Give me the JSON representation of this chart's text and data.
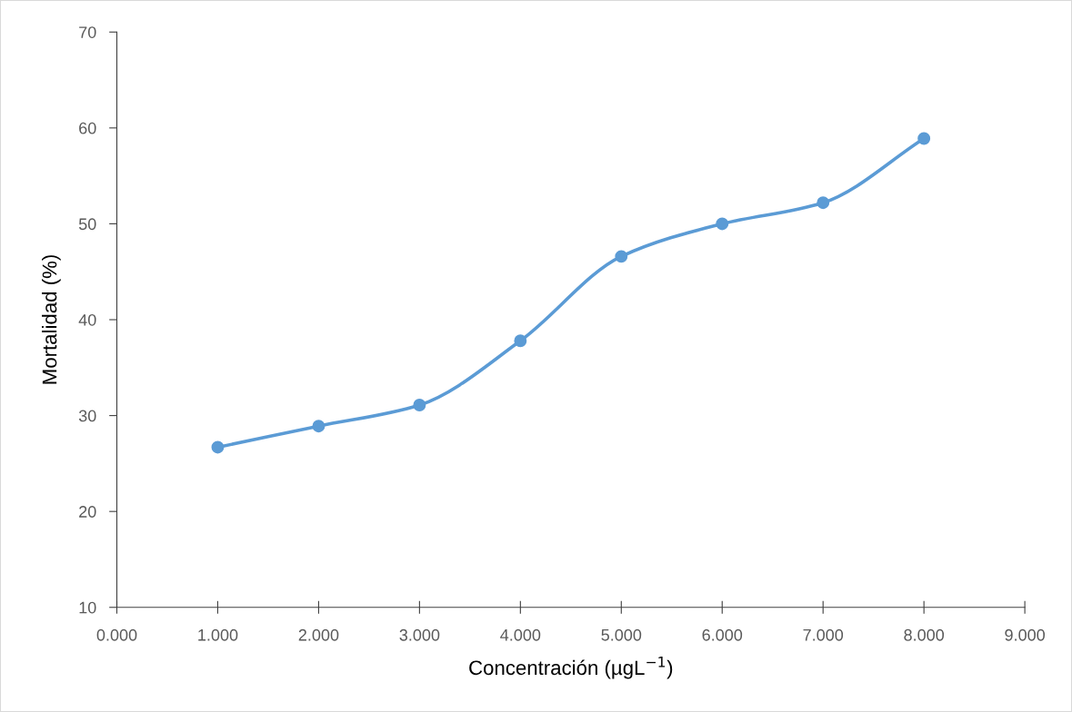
{
  "chart_data": {
    "type": "line",
    "xlabel": "Concentración (µgL$^{−1}$)",
    "ylabel": "Mortalidad (%)",
    "x": [
      1,
      2,
      3,
      4,
      5,
      6,
      7,
      8
    ],
    "series": [
      {
        "color": "#5b9bd5",
        "values": [
          26.7,
          28.9,
          31.1,
          37.8,
          46.6,
          50.0,
          52.2,
          58.9
        ]
      }
    ],
    "xlim": [
      0,
      9
    ],
    "xticks": [
      {
        "value": 0,
        "label": "0.000"
      },
      {
        "value": 1,
        "label": "1.000"
      },
      {
        "value": 2,
        "label": "2.000"
      },
      {
        "value": 3,
        "label": "3.000"
      },
      {
        "value": 4,
        "label": "4.000"
      },
      {
        "value": 5,
        "label": "5.000"
      },
      {
        "value": 6,
        "label": "6.000"
      },
      {
        "value": 7,
        "label": "7.000"
      },
      {
        "value": 8,
        "label": "8.000"
      },
      {
        "value": 9,
        "label": "9.000"
      }
    ],
    "ylim": [
      10,
      70
    ],
    "yticks": [
      10,
      20,
      30,
      40,
      50,
      60,
      70
    ],
    "grid": false,
    "legend": false,
    "marker": "circle",
    "line_style": "solid"
  }
}
